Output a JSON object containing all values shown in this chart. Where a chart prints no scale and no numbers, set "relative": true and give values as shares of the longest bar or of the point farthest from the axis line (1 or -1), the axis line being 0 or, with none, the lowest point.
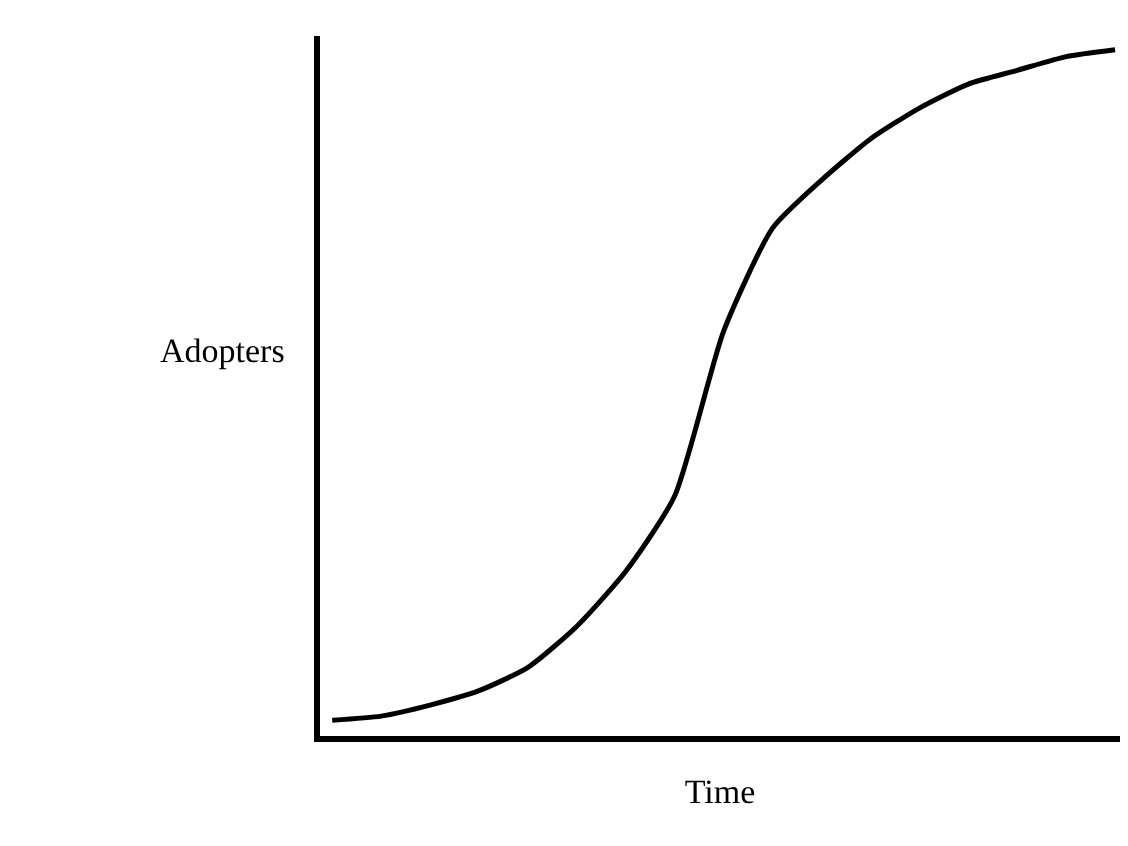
{
  "chart_data": {
    "type": "line",
    "relative": true,
    "xlabel": "Time",
    "ylabel": "Adopters",
    "categories": [
      null,
      null,
      null,
      null,
      null,
      null,
      null,
      null,
      null,
      null,
      null,
      null,
      null,
      null,
      null,
      null,
      null
    ],
    "series": [
      {
        "color": "#000000",
        "values": [
          0.023,
          0.029,
          0.045,
          0.066,
          0.1,
          0.16,
          0.24,
          0.35,
          0.59,
          0.74,
          0.81,
          0.87,
          0.915,
          0.95,
          0.97,
          0.99,
          1.0
        ]
      }
    ],
    "marker": "none",
    "line_style": "solid",
    "legend": false
  }
}
